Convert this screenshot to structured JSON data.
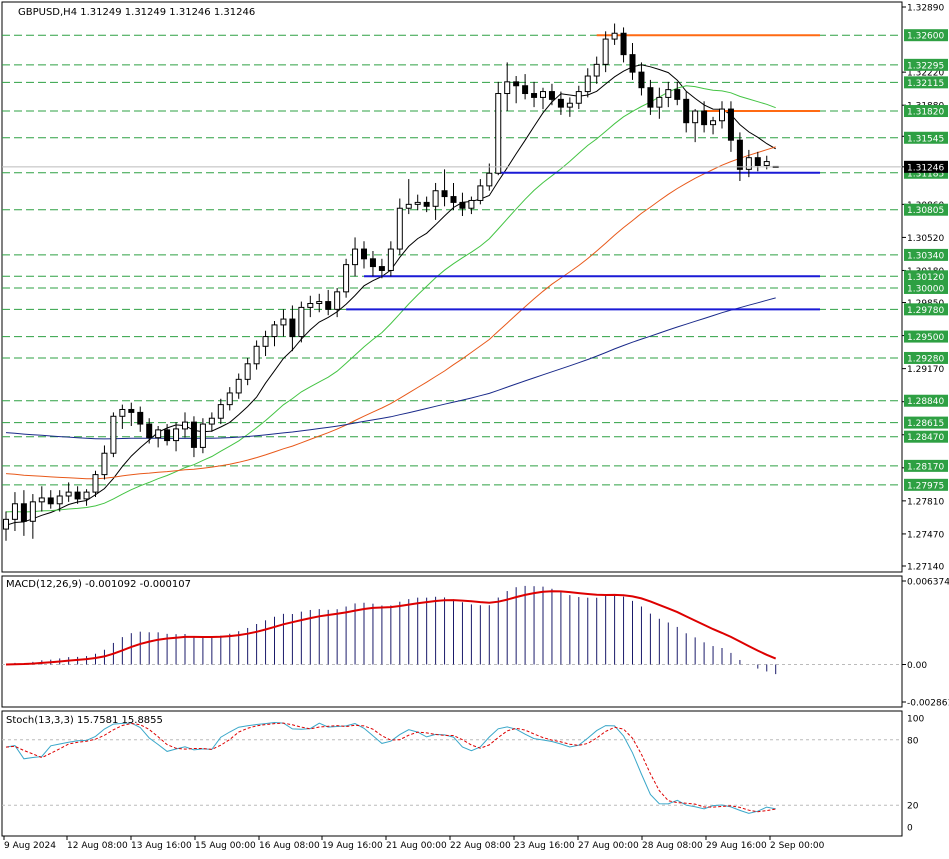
{
  "chart_data": {
    "type": "candlestick",
    "symbol_header": "GBPUSD,H4  1.31249 1.31249 1.31246 1.31246",
    "colors": {
      "grid_line": "#2ea043",
      "resistance": "#ff6a13",
      "support": "#1a1ad6",
      "ma_black": "#000000",
      "ma_green": "#44c444",
      "ma_orange": "#e8591a",
      "ma_navy": "#1a2a8a",
      "macd_signal": "#dd0000",
      "macd_hist": "#1a1a6a",
      "stoch_main": "#3aa7c9",
      "stoch_signal": "#dd0000",
      "price_label_bg": "#2ea043",
      "current_price_bg": "#000000"
    },
    "price_axis": {
      "ticks": [
        "1.32890",
        "1.32220",
        "1.31880",
        "1.31560",
        "1.31246",
        "1.30860",
        "1.30520",
        "1.30180",
        "1.29850",
        "1.29510",
        "1.29170",
        "1.28830",
        "1.28490",
        "1.28150",
        "1.27810",
        "1.27470",
        "1.27140"
      ],
      "min": 1.2714,
      "max": 1.3289
    },
    "level_labels": [
      "1.32600",
      "1.32295",
      "1.32115",
      "1.31820",
      "1.31545",
      "1.31185",
      "1.30805",
      "1.30340",
      "1.30120",
      "1.30000",
      "1.29780",
      "1.29500",
      "1.29280",
      "1.28840",
      "1.28615",
      "1.28470",
      "1.28170",
      "1.27975"
    ],
    "current_price": "1.31246",
    "resistance_levels": [
      1.326,
      1.3182
    ],
    "support_levels": [
      1.31185,
      1.3012,
      1.2978
    ],
    "x_labels": [
      "9 Aug 2024",
      "12 Aug 08:00",
      "13 Aug 16:00",
      "15 Aug 00:00",
      "16 Aug 08:00",
      "19 Aug 16:00",
      "21 Aug 00:00",
      "22 Aug 08:00",
      "23 Aug 16:00",
      "27 Aug 00:00",
      "28 Aug 08:00",
      "29 Aug 16:00",
      "2 Sep 00:00"
    ],
    "candles": [
      [
        1.2752,
        1.277,
        1.274,
        1.2762
      ],
      [
        1.2762,
        1.279,
        1.275,
        1.2778
      ],
      [
        1.2778,
        1.2792,
        1.2745,
        1.276
      ],
      [
        1.276,
        1.2788,
        1.2742,
        1.278
      ],
      [
        1.278,
        1.2796,
        1.277,
        1.2784
      ],
      [
        1.2784,
        1.2792,
        1.2773,
        1.2778
      ],
      [
        1.2778,
        1.2792,
        1.277,
        1.2786
      ],
      [
        1.2786,
        1.28,
        1.278,
        1.279
      ],
      [
        1.279,
        1.2796,
        1.2778,
        1.2783
      ],
      [
        1.2783,
        1.2793,
        1.2776,
        1.279
      ],
      [
        1.279,
        1.2812,
        1.2785,
        1.2808
      ],
      [
        1.2808,
        1.2838,
        1.2803,
        1.283
      ],
      [
        1.283,
        1.2872,
        1.2826,
        1.2868
      ],
      [
        1.2868,
        1.288,
        1.2855,
        1.2875
      ],
      [
        1.2875,
        1.2882,
        1.2858,
        1.2872
      ],
      [
        1.2872,
        1.2878,
        1.2852,
        1.286
      ],
      [
        1.286,
        1.2866,
        1.284,
        1.2846
      ],
      [
        1.2846,
        1.2858,
        1.2836,
        1.2854
      ],
      [
        1.2854,
        1.286,
        1.2838,
        1.2843
      ],
      [
        1.2843,
        1.2862,
        1.2832,
        1.2855
      ],
      [
        1.2855,
        1.2872,
        1.2846,
        1.2862
      ],
      [
        1.2862,
        1.2868,
        1.2826,
        1.2836
      ],
      [
        1.2836,
        1.2866,
        1.283,
        1.286
      ],
      [
        1.286,
        1.2872,
        1.2852,
        1.2866
      ],
      [
        1.2866,
        1.2886,
        1.286,
        1.288
      ],
      [
        1.288,
        1.2898,
        1.2874,
        1.2892
      ],
      [
        1.2892,
        1.2912,
        1.2886,
        1.2906
      ],
      [
        1.2906,
        1.2928,
        1.29,
        1.2922
      ],
      [
        1.2922,
        1.2946,
        1.2916,
        1.294
      ],
      [
        1.294,
        1.2956,
        1.293,
        1.295
      ],
      [
        1.295,
        1.2966,
        1.294,
        1.2962
      ],
      [
        1.2962,
        1.2978,
        1.295,
        1.2968
      ],
      [
        1.2968,
        1.2982,
        1.2935,
        1.295
      ],
      [
        1.295,
        1.2986,
        1.2944,
        1.298
      ],
      [
        1.298,
        1.2992,
        1.297,
        1.2984
      ],
      [
        1.2984,
        1.2994,
        1.2975,
        1.2986
      ],
      [
        1.2986,
        1.2998,
        1.2972,
        1.2978
      ],
      [
        1.2978,
        1.3,
        1.297,
        1.2996
      ],
      [
        1.2996,
        1.303,
        1.299,
        1.3024
      ],
      [
        1.3024,
        1.3052,
        1.3012,
        1.304
      ],
      [
        1.304,
        1.3048,
        1.302,
        1.303
      ],
      [
        1.303,
        1.3038,
        1.3012,
        1.3022
      ],
      [
        1.3022,
        1.303,
        1.301,
        1.3018
      ],
      [
        1.3018,
        1.3048,
        1.3012,
        1.304
      ],
      [
        1.304,
        1.3092,
        1.3034,
        1.3082
      ],
      [
        1.3082,
        1.3112,
        1.3076,
        1.3086
      ],
      [
        1.3086,
        1.3096,
        1.308,
        1.3088
      ],
      [
        1.3088,
        1.3094,
        1.3078,
        1.3084
      ],
      [
        1.3084,
        1.3108,
        1.307,
        1.31
      ],
      [
        1.31,
        1.3122,
        1.3084,
        1.3094
      ],
      [
        1.3094,
        1.3108,
        1.308,
        1.3088
      ],
      [
        1.3088,
        1.3098,
        1.3074,
        1.3082
      ],
      [
        1.3082,
        1.3094,
        1.3076,
        1.309
      ],
      [
        1.309,
        1.3112,
        1.3086,
        1.3105
      ],
      [
        1.3105,
        1.3128,
        1.31,
        1.3118
      ],
      [
        1.3118,
        1.3212,
        1.3116,
        1.32
      ],
      [
        1.32,
        1.3232,
        1.3182,
        1.3212
      ],
      [
        1.3212,
        1.3218,
        1.319,
        1.3208
      ],
      [
        1.3208,
        1.322,
        1.3194,
        1.32
      ],
      [
        1.32,
        1.3212,
        1.3186,
        1.3196
      ],
      [
        1.3196,
        1.3206,
        1.3184,
        1.3202
      ],
      [
        1.3202,
        1.321,
        1.3188,
        1.3194
      ],
      [
        1.3194,
        1.3202,
        1.3178,
        1.3186
      ],
      [
        1.3186,
        1.3196,
        1.3176,
        1.319
      ],
      [
        1.319,
        1.3208,
        1.3184,
        1.3202
      ],
      [
        1.3202,
        1.3226,
        1.3196,
        1.3218
      ],
      [
        1.3218,
        1.3238,
        1.321,
        1.323
      ],
      [
        1.323,
        1.3264,
        1.3222,
        1.3256
      ],
      [
        1.3256,
        1.3272,
        1.325,
        1.3262
      ],
      [
        1.3262,
        1.3268,
        1.3232,
        1.324
      ],
      [
        1.324,
        1.3252,
        1.3214,
        1.3222
      ],
      [
        1.3222,
        1.3232,
        1.3198,
        1.3206
      ],
      [
        1.3206,
        1.3214,
        1.3178,
        1.3186
      ],
      [
        1.3186,
        1.3206,
        1.3174,
        1.3196
      ],
      [
        1.3196,
        1.3212,
        1.3186,
        1.3204
      ],
      [
        1.3204,
        1.3212,
        1.3188,
        1.3194
      ],
      [
        1.3194,
        1.3202,
        1.316,
        1.317
      ],
      [
        1.317,
        1.3184,
        1.315,
        1.3182
      ],
      [
        1.3182,
        1.3192,
        1.316,
        1.3168
      ],
      [
        1.3168,
        1.3176,
        1.3158,
        1.3172
      ],
      [
        1.3172,
        1.3192,
        1.3164,
        1.3184
      ],
      [
        1.3184,
        1.3192,
        1.314,
        1.3152
      ],
      [
        1.3152,
        1.316,
        1.311,
        1.3122
      ],
      [
        1.3122,
        1.3142,
        1.3114,
        1.3134
      ],
      [
        1.3134,
        1.314,
        1.312,
        1.3126
      ],
      [
        1.3126,
        1.3136,
        1.3122,
        1.313
      ],
      [
        1.3125,
        1.3125,
        1.3124,
        1.3125
      ]
    ],
    "macd": {
      "label": "MACD(12,26,9) -0.001092 -0.000107",
      "ticks": [
        "0.006374",
        "0.00",
        "-0.002861"
      ],
      "max": 0.006374,
      "min": -0.002861
    },
    "stoch": {
      "label": "Stoch(13,3,3) 15.7581 15.8855",
      "ticks": [
        "100",
        "80",
        "20",
        "0"
      ]
    }
  }
}
